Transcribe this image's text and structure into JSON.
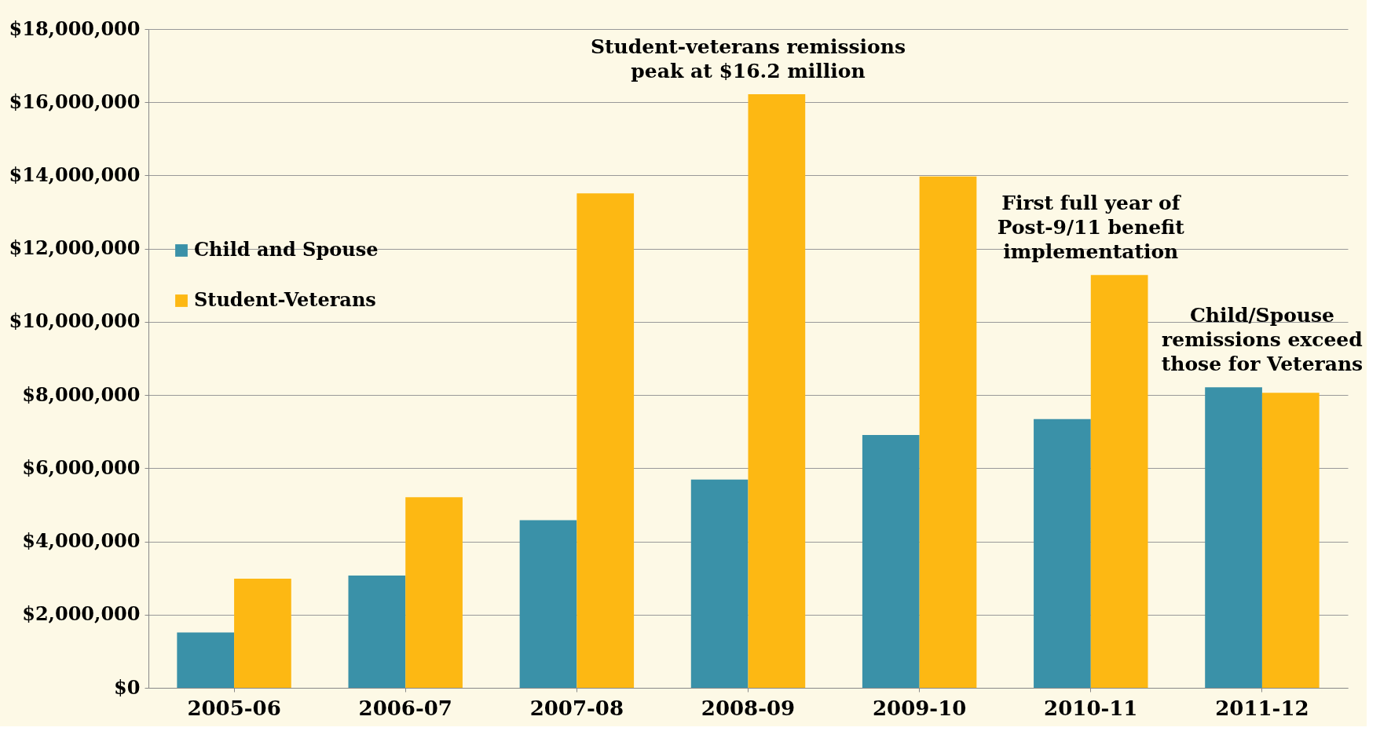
{
  "chart_data": {
    "type": "bar",
    "categories": [
      "2005-06",
      "2006-07",
      "2007-08",
      "2008-09",
      "2009-10",
      "2010-11",
      "2011-12"
    ],
    "series": [
      {
        "name": "Child and Spouse",
        "color": "#3a91a8",
        "values": [
          1510000,
          3070000,
          4580000,
          5690000,
          6910000,
          7340000,
          8210000
        ]
      },
      {
        "name": "Student-Veterans",
        "color": "#fdb813",
        "values": [
          2980000,
          5210000,
          13510000,
          16220000,
          13970000,
          11280000,
          8060000
        ]
      }
    ],
    "ylim": [
      0,
      18000000
    ],
    "yticks": [
      {
        "value": 0,
        "label": "$0"
      },
      {
        "value": 2000000,
        "label": "$2,000,000"
      },
      {
        "value": 4000000,
        "label": "$4,000,000"
      },
      {
        "value": 6000000,
        "label": "$6,000,000"
      },
      {
        "value": 8000000,
        "label": "$8,000,000"
      },
      {
        "value": 10000000,
        "label": "$10,000,000"
      },
      {
        "value": 12000000,
        "label": "$12,000,000"
      },
      {
        "value": 14000000,
        "label": "$14,000,000"
      },
      {
        "value": 16000000,
        "label": "$16,000,000"
      },
      {
        "value": 18000000,
        "label": "$18,000,000"
      }
    ],
    "annotations": [
      {
        "text": "Student-veterans remissions\npeak at $16.2 million",
        "x": "2008-09",
        "y": 16220000
      },
      {
        "text": "First full year of\nPost-9/11 benefit\nimplementation",
        "x": "2010-11",
        "y": 11280000
      },
      {
        "text": "Child/Spouse\nremissions exceed\nthose for Veterans",
        "x": "2011-12",
        "y": 8210000
      }
    ],
    "grid": "y",
    "legend": "left"
  }
}
